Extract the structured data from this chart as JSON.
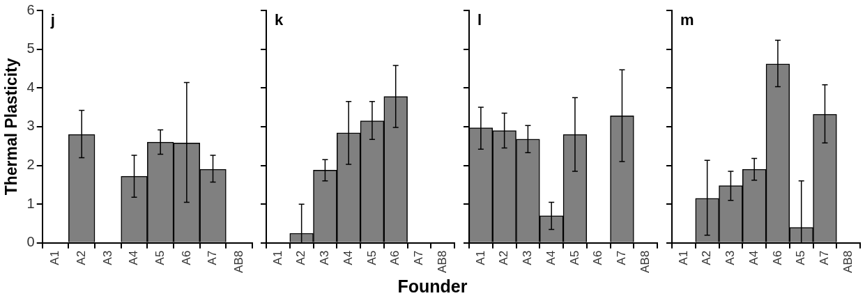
{
  "chart_data": [
    {
      "type": "bar",
      "title": "j",
      "ylabel": "Thermal Plasticity",
      "categories": [
        "A1",
        "A2",
        "A3",
        "A4",
        "A5",
        "A6",
        "A7",
        "AB8"
      ],
      "values": [
        null,
        2.8,
        null,
        1.72,
        2.6,
        2.58,
        1.9,
        null
      ],
      "errors": [
        null,
        [
          2.2,
          3.42
        ],
        null,
        [
          1.18,
          2.26
        ],
        [
          2.29,
          2.92
        ],
        [
          1.05,
          4.14
        ],
        [
          1.57,
          2.26
        ],
        null
      ],
      "color": "#808080",
      "ylim": [
        0,
        6
      ],
      "yticks": [
        0,
        1,
        2,
        3,
        4,
        5,
        6
      ]
    },
    {
      "type": "bar",
      "title": "k",
      "xlabel": "Founder",
      "categories": [
        "A1",
        "A2",
        "A3",
        "A4",
        "A5",
        "A6",
        "A7",
        "AB8"
      ],
      "values": [
        null,
        0.25,
        1.88,
        2.84,
        3.15,
        3.78,
        null,
        null
      ],
      "errors": [
        null,
        [
          0,
          1.0
        ],
        [
          1.6,
          2.15
        ],
        [
          2.03,
          3.65
        ],
        [
          2.67,
          3.65
        ],
        [
          2.98,
          4.58
        ],
        null,
        null
      ],
      "color": "#808080",
      "ylim": [
        0,
        6
      ],
      "yticks": [
        0,
        1,
        2,
        3,
        4,
        5,
        6
      ],
      "tick_labels": "x"
    },
    {
      "type": "bar",
      "title": "l",
      "categories": [
        "A1",
        "A2",
        "A3",
        "A4",
        "A5",
        "A6",
        "A7",
        "AB8"
      ],
      "values": [
        2.97,
        2.9,
        2.68,
        0.7,
        2.8,
        null,
        3.28,
        null
      ],
      "errors": [
        [
          2.42,
          3.5
        ],
        [
          2.45,
          3.35
        ],
        [
          2.33,
          3.03
        ],
        [
          0.35,
          1.05
        ],
        [
          1.85,
          3.75
        ],
        null,
        [
          2.1,
          4.47
        ],
        null
      ],
      "color": "#808080",
      "ylim": [
        0,
        6
      ],
      "yticks": [
        0,
        1,
        2,
        3,
        4,
        5,
        6
      ],
      "tick_labels": "x"
    },
    {
      "type": "bar",
      "title": "m",
      "categories": [
        "A1",
        "A2",
        "A3",
        "A4",
        "A6",
        "A5",
        "A7",
        "AB8"
      ],
      "values": [
        null,
        1.15,
        1.48,
        1.9,
        4.62,
        0.4,
        3.32,
        null
      ],
      "errors": [
        null,
        [
          0.2,
          2.13
        ],
        [
          1.1,
          1.85
        ],
        [
          1.62,
          2.18
        ],
        [
          4.03,
          5.23
        ],
        [
          0,
          1.6
        ],
        [
          2.58,
          4.08
        ],
        null
      ],
      "color": "#808080",
      "ylim": [
        0,
        6
      ],
      "yticks": [
        0,
        1,
        2,
        3,
        4,
        5,
        6
      ],
      "tick_labels": "x"
    }
  ]
}
